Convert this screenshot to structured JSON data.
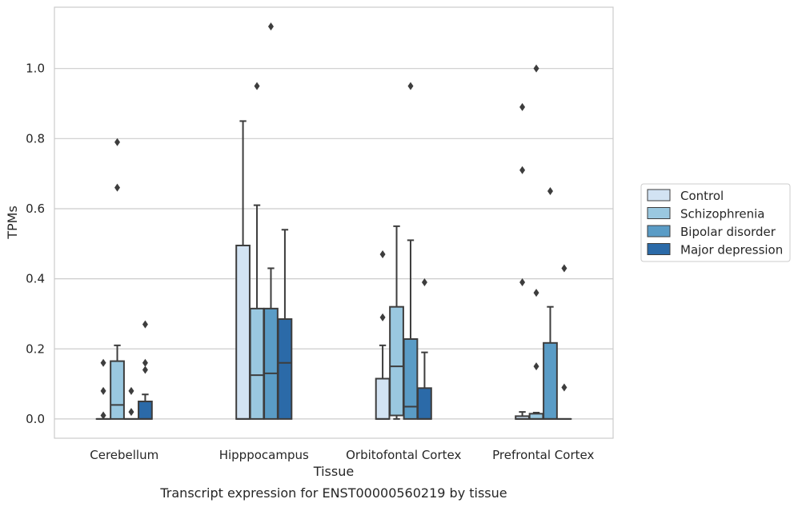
{
  "chart_data": {
    "type": "box",
    "xlabel": "Tissue",
    "ylabel": "TPMs",
    "caption": "Transcript expression for ENST00000560219 by tissue",
    "ylim": [
      -0.055,
      1.175
    ],
    "yticks": [
      0.0,
      0.2,
      0.4,
      0.6,
      0.8,
      1.0
    ],
    "ytick_labels": [
      "0.0",
      "0.2",
      "0.4",
      "0.6",
      "0.8",
      "1.0"
    ],
    "grid": "horizontal",
    "legend_position": "right",
    "categories": [
      "Cerebellum",
      "Hipppocampus",
      "Orbitofontal Cortex",
      "Prefrontal Cortex"
    ],
    "series": [
      {
        "name": "Control",
        "color": "#d2e3f3",
        "boxes": [
          {
            "q1": 0.0,
            "median": 0.0,
            "q3": 0.0,
            "whisker_low": 0.0,
            "whisker_high": 0.0,
            "outliers": [
              0.01,
              0.08,
              0.16
            ]
          },
          {
            "q1": 0.0,
            "median": 0.0,
            "q3": 0.495,
            "whisker_low": 0.0,
            "whisker_high": 0.85,
            "outliers": []
          },
          {
            "q1": 0.0,
            "median": 0.0,
            "q3": 0.115,
            "whisker_low": 0.0,
            "whisker_high": 0.21,
            "outliers": [
              0.29,
              0.47
            ]
          },
          {
            "q1": 0.0,
            "median": 0.0,
            "q3": 0.008,
            "whisker_low": 0.0,
            "whisker_high": 0.02,
            "outliers": [
              0.39,
              0.71,
              0.89
            ]
          }
        ]
      },
      {
        "name": "Schizophrenia",
        "color": "#9ac8e0",
        "boxes": [
          {
            "q1": 0.0,
            "median": 0.04,
            "q3": 0.165,
            "whisker_low": 0.0,
            "whisker_high": 0.21,
            "outliers": [
              0.66,
              0.79
            ]
          },
          {
            "q1": 0.0,
            "median": 0.125,
            "q3": 0.315,
            "whisker_low": 0.0,
            "whisker_high": 0.61,
            "outliers": [
              0.95
            ]
          },
          {
            "q1": 0.01,
            "median": 0.15,
            "q3": 0.32,
            "whisker_low": 0.0,
            "whisker_high": 0.55,
            "outliers": []
          },
          {
            "q1": 0.0,
            "median": 0.0,
            "q3": 0.015,
            "whisker_low": 0.0,
            "whisker_high": 0.018,
            "outliers": [
              0.15,
              0.36,
              1.0
            ]
          }
        ]
      },
      {
        "name": "Bipolar disorder",
        "color": "#5a9cc6",
        "boxes": [
          {
            "q1": 0.0,
            "median": 0.0,
            "q3": 0.0,
            "whisker_low": 0.0,
            "whisker_high": 0.0,
            "outliers": [
              0.02,
              0.08
            ]
          },
          {
            "q1": 0.0,
            "median": 0.13,
            "q3": 0.315,
            "whisker_low": 0.0,
            "whisker_high": 0.43,
            "outliers": [
              1.12
            ]
          },
          {
            "q1": 0.0,
            "median": 0.035,
            "q3": 0.228,
            "whisker_low": 0.0,
            "whisker_high": 0.51,
            "outliers": [
              0.95
            ]
          },
          {
            "q1": 0.0,
            "median": 0.0,
            "q3": 0.217,
            "whisker_low": 0.0,
            "whisker_high": 0.32,
            "outliers": [
              0.65
            ]
          }
        ]
      },
      {
        "name": "Major depression",
        "color": "#2b6aa8",
        "boxes": [
          {
            "q1": 0.0,
            "median": 0.0,
            "q3": 0.05,
            "whisker_low": 0.0,
            "whisker_high": 0.07,
            "outliers": [
              0.14,
              0.16,
              0.27
            ]
          },
          {
            "q1": 0.0,
            "median": 0.16,
            "q3": 0.285,
            "whisker_low": 0.0,
            "whisker_high": 0.54,
            "outliers": []
          },
          {
            "q1": 0.0,
            "median": 0.0,
            "q3": 0.088,
            "whisker_low": 0.0,
            "whisker_high": 0.19,
            "outliers": [
              0.39
            ]
          },
          {
            "q1": 0.0,
            "median": 0.0,
            "q3": 0.0,
            "whisker_low": 0.0,
            "whisker_high": 0.0,
            "outliers": [
              0.09,
              0.43
            ]
          }
        ]
      }
    ]
  }
}
